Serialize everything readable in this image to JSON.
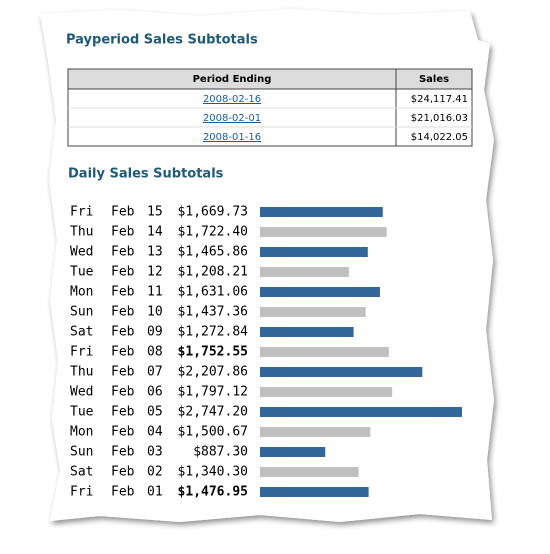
{
  "payperiod": {
    "title": "Payperiod Sales Subtotals",
    "columns": [
      "Period Ending",
      "Sales"
    ],
    "rows": [
      [
        "2008-02-16",
        "$24,117.41"
      ],
      [
        "2008-02-01",
        "$21,016.03"
      ],
      [
        "2008-01-16",
        "$14,022.05"
      ]
    ]
  },
  "daily_sales": {
    "title": "Daily Sales Subtotals",
    "colors": [
      "#336699",
      "#c0c0c0"
    ],
    "rows": [
      {
        "weekday": "Fri",
        "month": "Feb",
        "day": "15",
        "amount": 1669.73,
        "amount_label": "$1,669.73",
        "highlight": false
      },
      {
        "weekday": "Thu",
        "month": "Feb",
        "day": "14",
        "amount": 1722.4,
        "amount_label": "$1,722.40",
        "highlight": false
      },
      {
        "weekday": "Wed",
        "month": "Feb",
        "day": "13",
        "amount": 1465.86,
        "amount_label": "$1,465.86",
        "highlight": false
      },
      {
        "weekday": "Tue",
        "month": "Feb",
        "day": "12",
        "amount": 1208.21,
        "amount_label": "$1,208.21",
        "highlight": false
      },
      {
        "weekday": "Mon",
        "month": "Feb",
        "day": "11",
        "amount": 1631.06,
        "amount_label": "$1,631.06",
        "highlight": false
      },
      {
        "weekday": "Sun",
        "month": "Feb",
        "day": "10",
        "amount": 1437.36,
        "amount_label": "$1,437.36",
        "highlight": false
      },
      {
        "weekday": "Sat",
        "month": "Feb",
        "day": "09",
        "amount": 1272.84,
        "amount_label": "$1,272.84",
        "highlight": false
      },
      {
        "weekday": "Fri",
        "month": "Feb",
        "day": "08",
        "amount": 1752.55,
        "amount_label": "$1,752.55",
        "highlight": true
      },
      {
        "weekday": "Thu",
        "month": "Feb",
        "day": "07",
        "amount": 2207.86,
        "amount_label": "$2,207.86",
        "highlight": false
      },
      {
        "weekday": "Wed",
        "month": "Feb",
        "day": "06",
        "amount": 1797.12,
        "amount_label": "$1,797.12",
        "highlight": false
      },
      {
        "weekday": "Tue",
        "month": "Feb",
        "day": "05",
        "amount": 2747.2,
        "amount_label": "$2,747.20",
        "highlight": false
      },
      {
        "weekday": "Mon",
        "month": "Feb",
        "day": "04",
        "amount": 1500.67,
        "amount_label": "$1,500.67",
        "highlight": false
      },
      {
        "weekday": "Sun",
        "month": "Feb",
        "day": "03",
        "amount": 887.3,
        "amount_label": "$887.30",
        "highlight": false
      },
      {
        "weekday": "Sat",
        "month": "Feb",
        "day": "02",
        "amount": 1340.3,
        "amount_label": "$1,340.30",
        "highlight": false
      },
      {
        "weekday": "Fri",
        "month": "Feb",
        "day": "01",
        "amount": 1476.95,
        "amount_label": "$1,476.95",
        "highlight": true
      }
    ]
  }
}
